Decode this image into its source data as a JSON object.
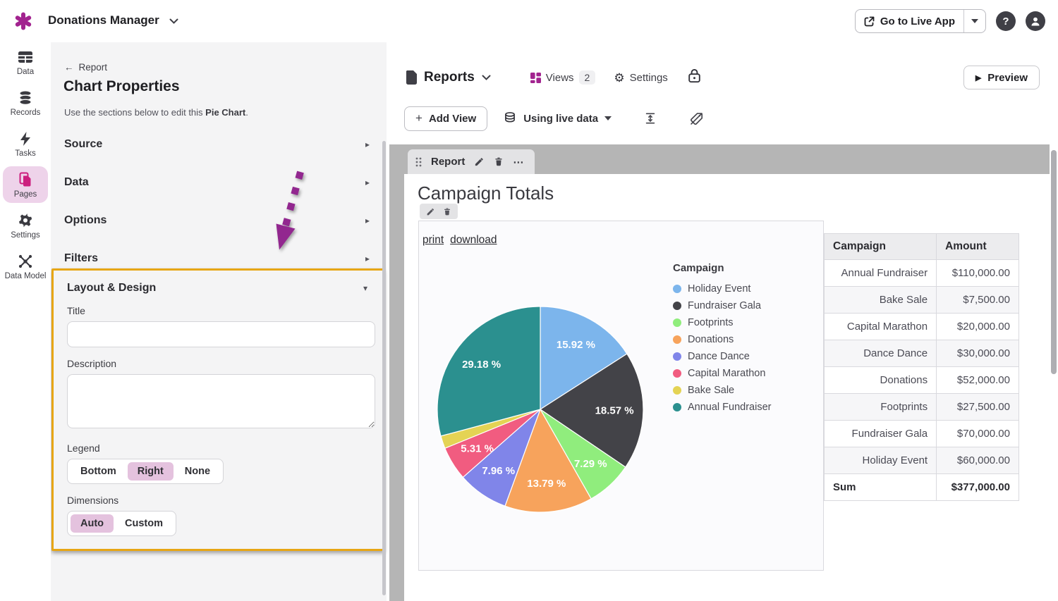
{
  "topbar": {
    "app_name": "Donations Manager",
    "go_live_label": "Go to Live App"
  },
  "rail": {
    "items": [
      {
        "id": "data",
        "label": "Data",
        "icon": "table-grid-icon",
        "active": false
      },
      {
        "id": "records",
        "label": "Records",
        "icon": "database-icon",
        "active": false
      },
      {
        "id": "tasks",
        "label": "Tasks",
        "icon": "lightning-icon",
        "active": false
      },
      {
        "id": "pages",
        "label": "Pages",
        "icon": "pages-icon",
        "active": true
      },
      {
        "id": "settings",
        "label": "Settings",
        "icon": "gear-icon",
        "active": false
      },
      {
        "id": "data-model",
        "label": "Data Model",
        "icon": "node-graph-icon",
        "active": false
      }
    ]
  },
  "panel": {
    "back_label": "Report",
    "title": "Chart Properties",
    "intro_prefix": "Use the sections below to edit this ",
    "intro_bold": "Pie Chart",
    "intro_suffix": ".",
    "sections": [
      "Source",
      "Data",
      "Options",
      "Filters"
    ],
    "layout_section": {
      "title": "Layout & Design",
      "title_label": "Title",
      "title_value": "",
      "description_label": "Description",
      "description_value": "",
      "legend_label": "Legend",
      "legend_options": [
        "Bottom",
        "Right",
        "None"
      ],
      "legend_selected": "Right",
      "dimensions_label": "Dimensions",
      "dimensions_options": [
        "Auto",
        "Custom"
      ],
      "dimensions_selected": "Auto"
    }
  },
  "main": {
    "page_title": "Reports",
    "views_label": "Views",
    "views_count": "2",
    "settings_label": "Settings",
    "preview_label": "Preview",
    "add_view_label": "Add View",
    "live_data_label": "Using live data",
    "report_tab_label": "Report",
    "report_title": "Campaign Totals",
    "print_link": "print",
    "download_link": "download"
  },
  "chart_data": {
    "type": "pie",
    "title": "Campaign Totals",
    "legend_title": "Campaign",
    "legend_position": "right",
    "start_angle_deg": -90,
    "direction": "clockwise",
    "series": [
      {
        "name": "Holiday Event",
        "value": 60000,
        "percent": 15.92,
        "color": "#7cb5ec",
        "label_shown": true
      },
      {
        "name": "Fundraiser Gala",
        "value": 70000,
        "percent": 18.57,
        "color": "#434348",
        "label_shown": true
      },
      {
        "name": "Footprints",
        "value": 27500,
        "percent": 7.29,
        "color": "#90ed7d",
        "label_shown": true
      },
      {
        "name": "Donations",
        "value": 52000,
        "percent": 13.79,
        "color": "#f7a35c",
        "label_shown": true
      },
      {
        "name": "Dance Dance",
        "value": 30000,
        "percent": 7.96,
        "color": "#8085e9",
        "label_shown": true
      },
      {
        "name": "Capital Marathon",
        "value": 20000,
        "percent": 5.31,
        "color": "#f15c80",
        "label_shown": true
      },
      {
        "name": "Bake Sale",
        "value": 7500,
        "percent": 1.99,
        "color": "#e4d354",
        "label_shown": false
      },
      {
        "name": "Annual Fundraiser",
        "value": 110000,
        "percent": 29.18,
        "color": "#2b908f",
        "label_shown": true
      }
    ]
  },
  "table": {
    "headers": [
      "Campaign",
      "Amount"
    ],
    "rows": [
      [
        "Annual Fundraiser",
        "$110,000.00"
      ],
      [
        "Bake Sale",
        "$7,500.00"
      ],
      [
        "Capital Marathon",
        "$20,000.00"
      ],
      [
        "Dance Dance",
        "$30,000.00"
      ],
      [
        "Donations",
        "$52,000.00"
      ],
      [
        "Footprints",
        "$27,500.00"
      ],
      [
        "Fundraiser Gala",
        "$70,000.00"
      ],
      [
        "Holiday Event",
        "$60,000.00"
      ]
    ],
    "sum_label": "Sum",
    "sum_value": "$377,000.00"
  },
  "icons": {
    "back_arrow": "←",
    "ellipsis": "⋯",
    "play": "▶",
    "plus": "+",
    "help": "?",
    "gear": "⚙",
    "section_chevron": "▸",
    "collapse_chevron": "▾"
  },
  "colors": {
    "brand_magenta": "#a2238f",
    "active_item_bg": "#eed3ea",
    "selected_segment_bg": "#e4c2de",
    "highlight_border": "#e7a615",
    "annotation_arrow": "#92278f",
    "preview_gray": "#b5b5b5"
  }
}
